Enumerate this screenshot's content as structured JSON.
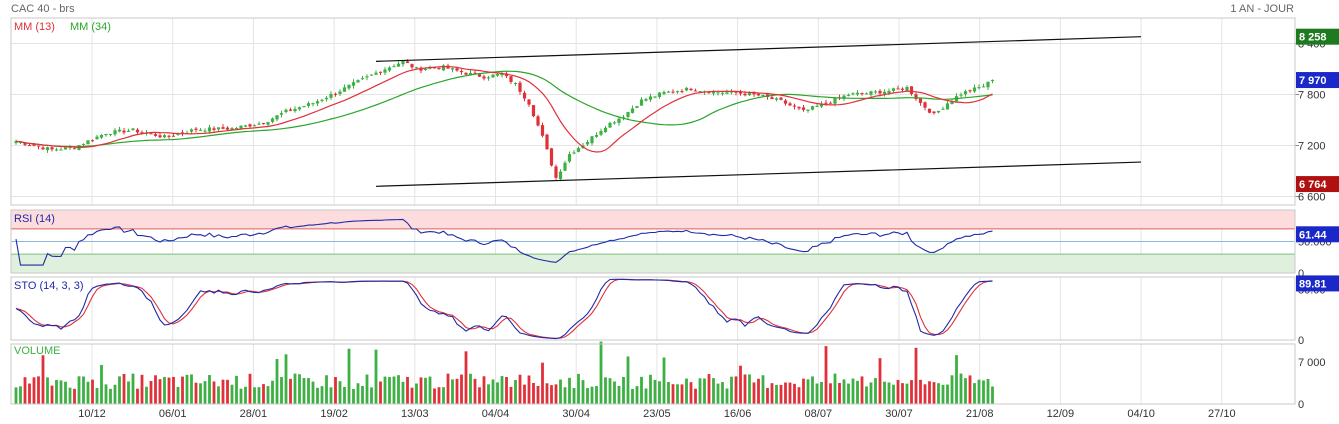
{
  "header": {
    "title": "CAC 40 - brs",
    "period": "1 AN - JOUR"
  },
  "colors": {
    "up": "#3cb043",
    "down": "#e0303a",
    "ma_fast": "#e0303a",
    "ma_slow": "#2aa62a",
    "rsi": "#1f2aa8",
    "sto_k": "#1f2aa8",
    "sto_d": "#e0303a",
    "rsi_high_zone": "#fcdcdc",
    "rsi_low_zone": "#dff0dc",
    "grid": "#e4e4e4"
  },
  "chart_data": [
    {
      "type": "line",
      "panel": "price",
      "title": "CAC 40 - brs",
      "legend": [
        {
          "name": "MM (13)",
          "color": "#e0303a"
        },
        {
          "name": "MM (34)",
          "color": "#2aa62a"
        }
      ],
      "ylim": [
        6500,
        8700
      ],
      "y_ticks": [
        "8 400",
        "7 800",
        "7 200",
        "6 600"
      ],
      "y_tick_values": [
        8400,
        7800,
        7200,
        6600
      ],
      "x_ticks": [
        "10/12",
        "06/01",
        "28/01",
        "19/02",
        "13/03",
        "04/04",
        "30/04",
        "23/05",
        "16/06",
        "08/07",
        "30/07",
        "21/08",
        "12/09",
        "04/10",
        "27/10"
      ],
      "price_anchors": [
        [
          0,
          7250
        ],
        [
          8,
          7150
        ],
        [
          13,
          7180
        ],
        [
          20,
          7350
        ],
        [
          26,
          7380
        ],
        [
          33,
          7300
        ],
        [
          40,
          7390
        ],
        [
          48,
          7400
        ],
        [
          55,
          7470
        ],
        [
          60,
          7600
        ],
        [
          66,
          7700
        ],
        [
          71,
          7820
        ],
        [
          76,
          7950
        ],
        [
          81,
          8080
        ],
        [
          86,
          8190
        ],
        [
          89,
          8100
        ],
        [
          95,
          8120
        ],
        [
          100,
          8050
        ],
        [
          104,
          8010
        ],
        [
          108,
          8040
        ],
        [
          111,
          7920
        ],
        [
          114,
          7700
        ],
        [
          117,
          7300
        ],
        [
          120,
          6820
        ],
        [
          123,
          7100
        ],
        [
          127,
          7250
        ],
        [
          131,
          7430
        ],
        [
          135,
          7550
        ],
        [
          139,
          7730
        ],
        [
          144,
          7820
        ],
        [
          150,
          7870
        ],
        [
          155,
          7830
        ],
        [
          160,
          7820
        ],
        [
          165,
          7790
        ],
        [
          170,
          7720
        ],
        [
          175,
          7600
        ],
        [
          180,
          7700
        ],
        [
          185,
          7800
        ],
        [
          190,
          7820
        ],
        [
          195,
          7850
        ],
        [
          198,
          7880
        ],
        [
          201,
          7700
        ],
        [
          204,
          7560
        ],
        [
          207,
          7700
        ],
        [
          210,
          7810
        ],
        [
          215,
          7900
        ],
        [
          217,
          7970
        ]
      ],
      "last_close": "7 970",
      "channel_upper": "8 258",
      "channel_lower": "6 764",
      "channel": {
        "start_index": 80,
        "end_index": 250,
        "upper": [
          8190,
          8480
        ],
        "lower": [
          6720,
          7005
        ]
      }
    },
    {
      "type": "line",
      "panel": "rsi",
      "title": "RSI (14)",
      "ylim": [
        0,
        100
      ],
      "levels": [
        70,
        50,
        30
      ],
      "y_ticks": [
        "50.000",
        "0"
      ],
      "y_tick_values": [
        50,
        0
      ],
      "last_value": "61.44"
    },
    {
      "type": "line",
      "panel": "stochastic",
      "title": "STO (14, 3, 3)",
      "ylim": [
        0,
        100
      ],
      "y_ticks": [
        "80.00",
        "0"
      ],
      "y_tick_values": [
        80,
        0
      ],
      "last_value": "89.81"
    },
    {
      "type": "bar",
      "panel": "volume",
      "title": "VOLUME",
      "ylim": [
        0,
        10000
      ],
      "y_ticks": [
        "7 000",
        "0"
      ],
      "y_tick_values": [
        7000,
        0
      ]
    }
  ]
}
